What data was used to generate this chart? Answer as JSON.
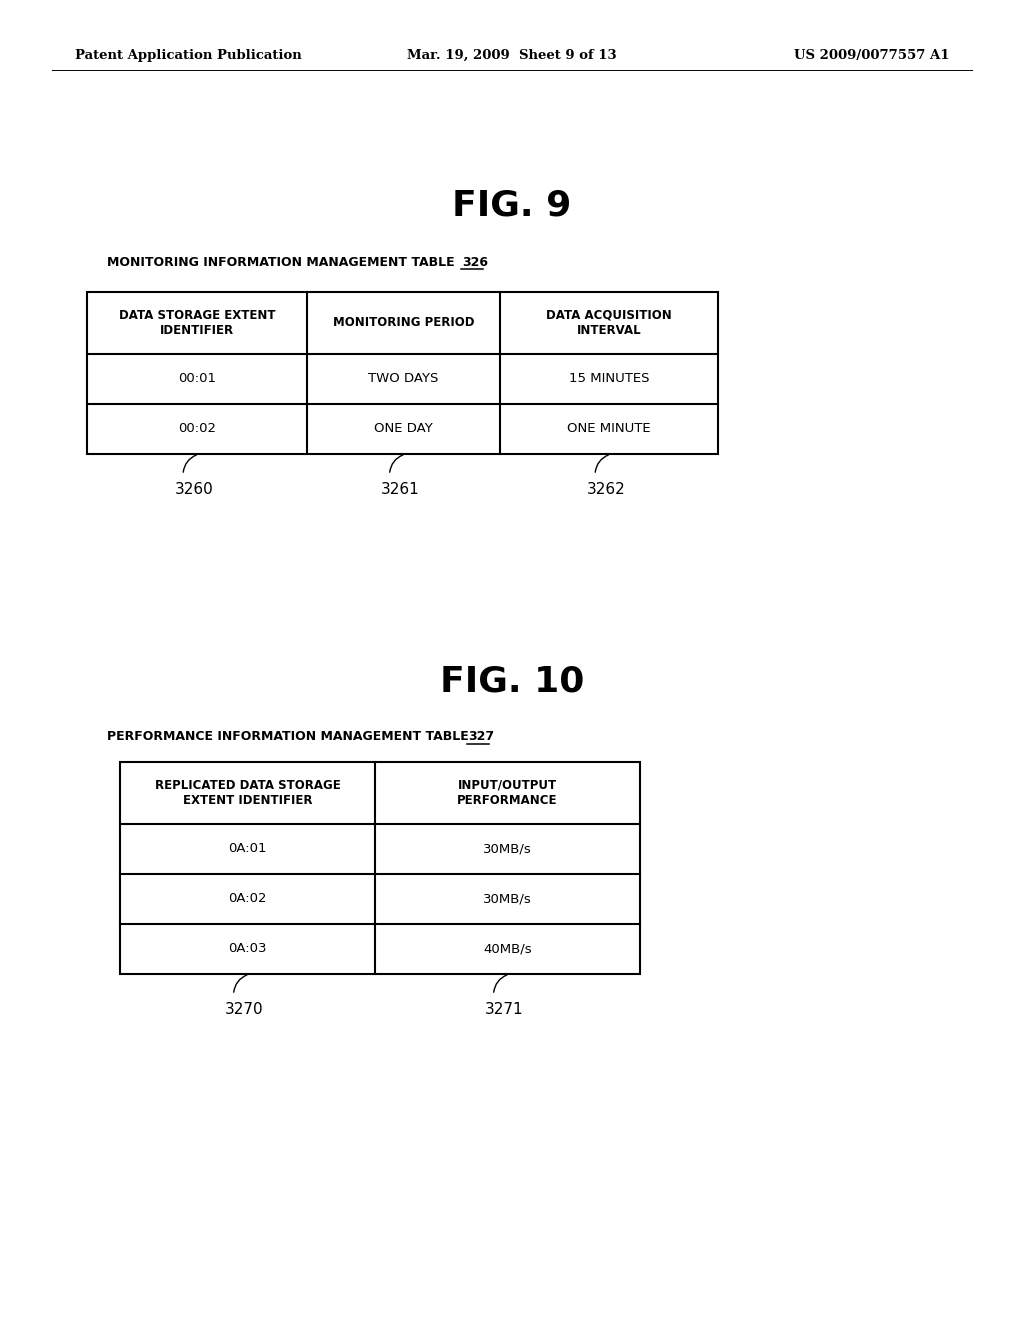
{
  "bg_color": "#ffffff",
  "header_left": "Patent Application Publication",
  "header_center": "Mar. 19, 2009  Sheet 9 of 13",
  "header_right": "US 2009/0077557 A1",
  "fig9_title": "FIG. 9",
  "fig9_table_label": "MONITORING INFORMATION MANAGEMENT TABLE",
  "fig9_table_ref": "326",
  "fig9_col_headers": [
    "DATA STORAGE EXTENT\nIDENTIFIER",
    "MONITORING PERIOD",
    "DATA ACQUISITION\nINTERVAL"
  ],
  "fig9_rows": [
    [
      "00:01",
      "TWO DAYS",
      "15 MINUTES"
    ],
    [
      "00:02",
      "ONE DAY",
      "ONE MINUTE"
    ]
  ],
  "fig9_col_labels": [
    "3260",
    "3261",
    "3262"
  ],
  "fig10_title": "FIG. 10",
  "fig10_table_label": "PERFORMANCE INFORMATION MANAGEMENT TABLE",
  "fig10_table_ref": "327",
  "fig10_col_headers": [
    "REPLICATED DATA STORAGE\nEXTENT IDENTIFIER",
    "INPUT/OUTPUT\nPERFORMANCE"
  ],
  "fig10_rows": [
    [
      "0A:01",
      "30MB/s"
    ],
    [
      "0A:02",
      "30MB/s"
    ],
    [
      "0A:03",
      "40MB/s"
    ]
  ],
  "fig10_col_labels": [
    "3270",
    "3271"
  ],
  "lw": 1.5,
  "header_fontsize": 9.5,
  "fig_title_fontsize": 26,
  "table_label_fontsize": 9,
  "col_header_fontsize": 8.5,
  "cell_fontsize": 9.5,
  "col_label_fontsize": 11
}
